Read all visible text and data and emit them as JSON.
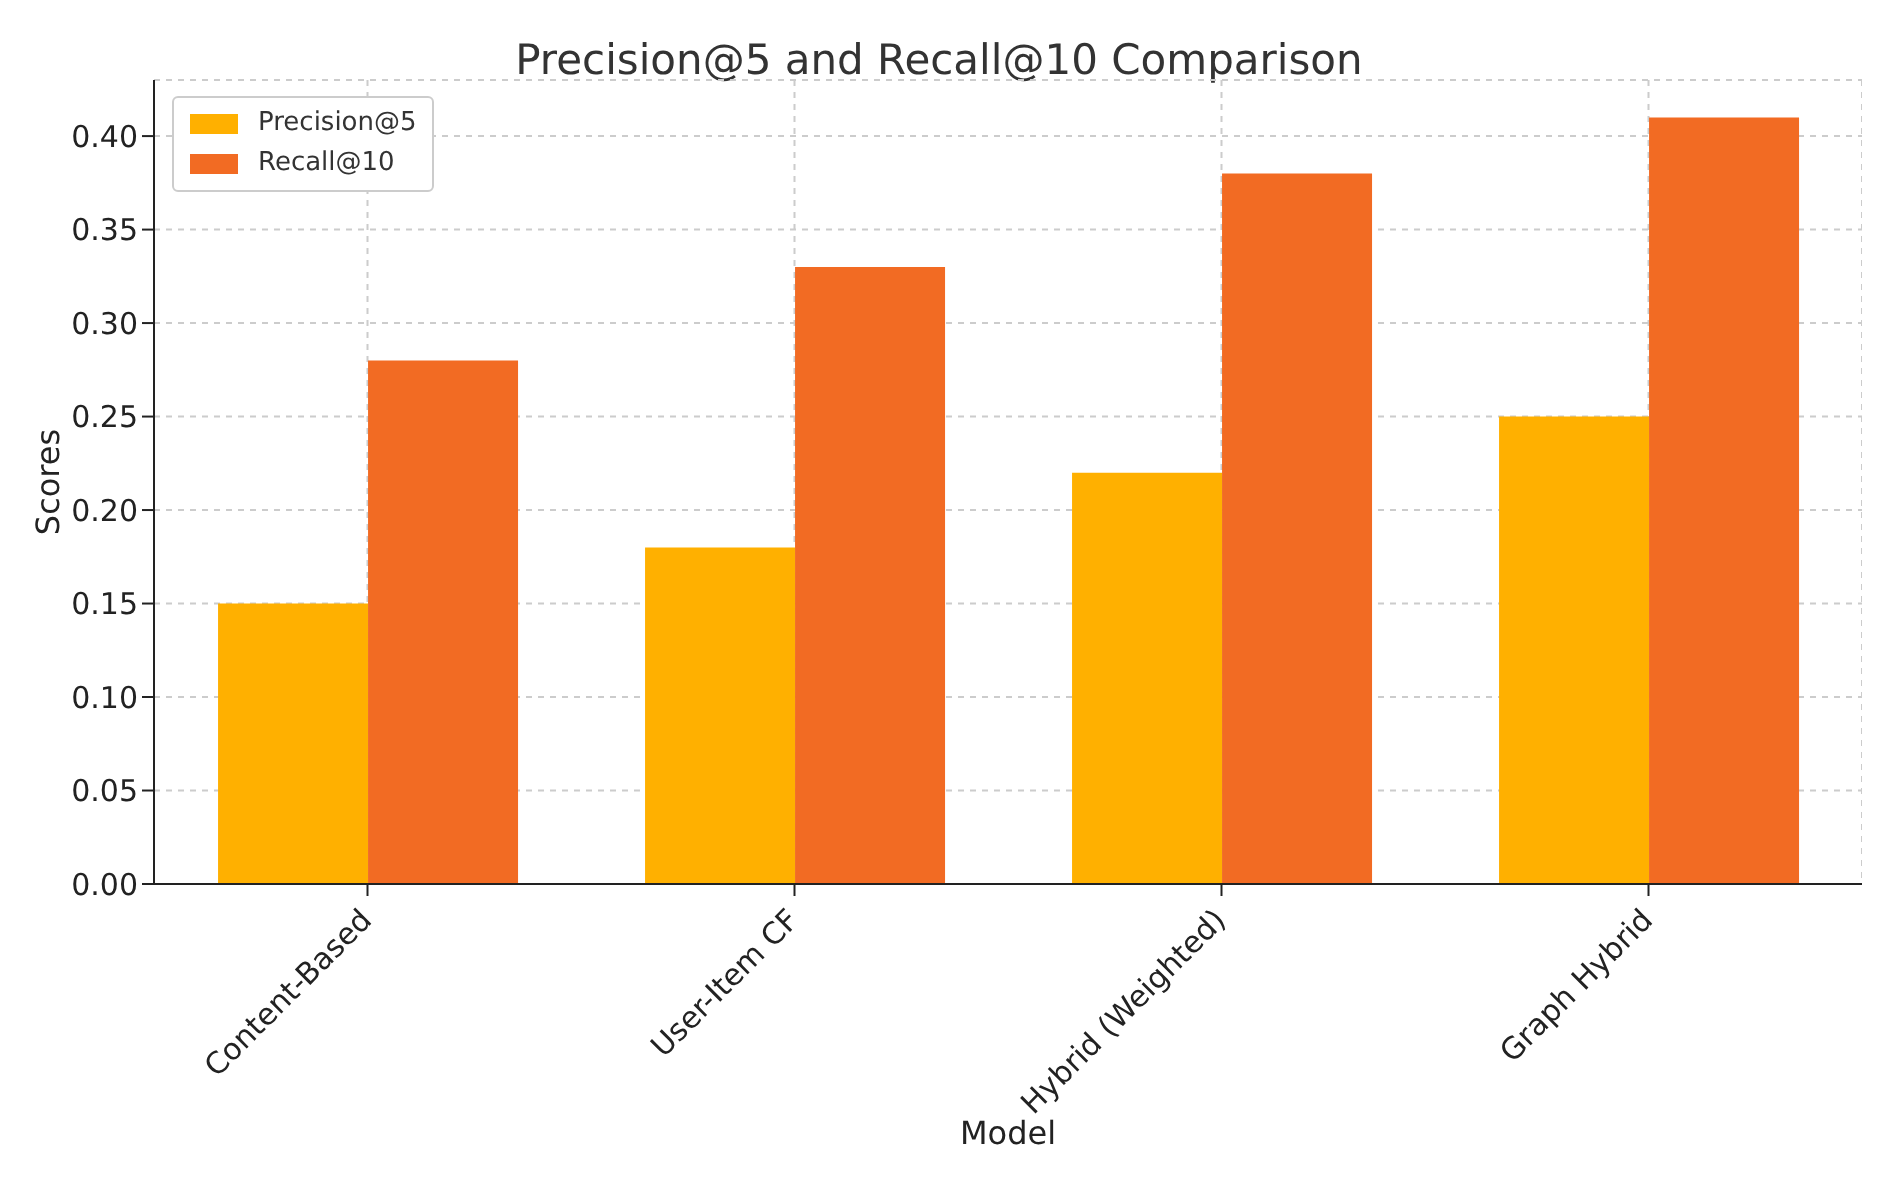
{
  "chart_data": {
    "type": "bar",
    "title": "Precision@5 and Recall@10 Comparison",
    "xlabel": "Model",
    "ylabel": "Scores",
    "categories": [
      "Content-Based",
      "User-Item CF",
      "Hybrid (Weighted)",
      "Graph Hybrid"
    ],
    "series": [
      {
        "name": "Precision@5",
        "color": "#ffb000",
        "values": [
          0.15,
          0.18,
          0.22,
          0.25
        ]
      },
      {
        "name": "Recall@10",
        "color": "#f26b23",
        "values": [
          0.28,
          0.33,
          0.38,
          0.41
        ]
      }
    ],
    "ylim": [
      0,
      0.43
    ],
    "yticks": [
      {
        "value": 0,
        "label": "0.00"
      },
      {
        "value": 0.05,
        "label": "0.05"
      },
      {
        "value": 0.1,
        "label": "0.10"
      },
      {
        "value": 0.15,
        "label": "0.15"
      },
      {
        "value": 0.2,
        "label": "0.20"
      },
      {
        "value": 0.25,
        "label": "0.25"
      },
      {
        "value": 0.3,
        "label": "0.30"
      },
      {
        "value": 0.35,
        "label": "0.35"
      },
      {
        "value": 0.4,
        "label": "0.40"
      }
    ],
    "grid": true,
    "legend": "top left"
  }
}
